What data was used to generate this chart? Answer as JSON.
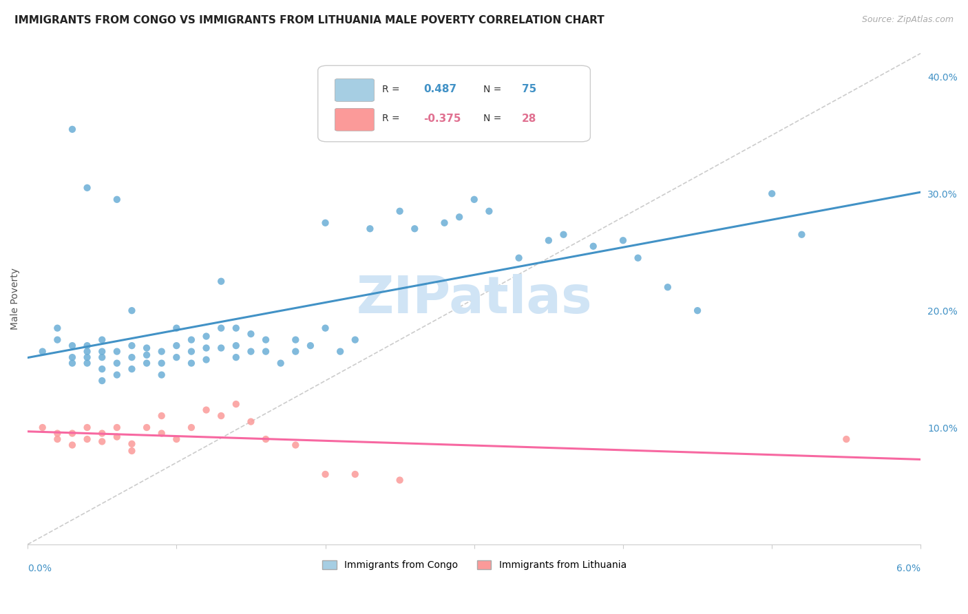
{
  "title": "IMMIGRANTS FROM CONGO VS IMMIGRANTS FROM LITHUANIA MALE POVERTY CORRELATION CHART",
  "source": "Source: ZipAtlas.com",
  "ylabel": "Male Poverty",
  "right_yticks": [
    "40.0%",
    "30.0%",
    "20.0%",
    "10.0%"
  ],
  "right_ytick_vals": [
    0.4,
    0.3,
    0.2,
    0.1
  ],
  "xlim": [
    0.0,
    0.06
  ],
  "ylim": [
    0.0,
    0.42
  ],
  "congo_R": 0.487,
  "congo_N": 75,
  "lithuania_R": -0.375,
  "lithuania_N": 28,
  "congo_color": "#6baed6",
  "congo_line_color": "#4292c6",
  "lithuania_color": "#fb9a99",
  "lithuania_line_color": "#f768a1",
  "legend_box_color_congo": "#a6cee3",
  "legend_box_color_lithuania": "#fb9a99",
  "watermark_text": "ZIPatlas",
  "watermark_color": "#d0e4f5",
  "background_color": "#ffffff",
  "grid_color": "#dddddd",
  "congo_scatter_x": [
    0.001,
    0.002,
    0.002,
    0.003,
    0.003,
    0.003,
    0.004,
    0.004,
    0.004,
    0.004,
    0.005,
    0.005,
    0.005,
    0.005,
    0.005,
    0.006,
    0.006,
    0.006,
    0.007,
    0.007,
    0.007,
    0.007,
    0.008,
    0.008,
    0.008,
    0.009,
    0.009,
    0.009,
    0.01,
    0.01,
    0.01,
    0.011,
    0.011,
    0.011,
    0.012,
    0.012,
    0.012,
    0.013,
    0.013,
    0.014,
    0.014,
    0.014,
    0.015,
    0.015,
    0.016,
    0.016,
    0.017,
    0.018,
    0.018,
    0.019,
    0.02,
    0.02,
    0.021,
    0.022,
    0.023,
    0.025,
    0.026,
    0.028,
    0.029,
    0.03,
    0.031,
    0.033,
    0.035,
    0.036,
    0.038,
    0.04,
    0.041,
    0.043,
    0.045,
    0.05,
    0.003,
    0.004,
    0.006,
    0.013,
    0.052
  ],
  "congo_scatter_y": [
    0.165,
    0.175,
    0.185,
    0.155,
    0.16,
    0.17,
    0.155,
    0.16,
    0.165,
    0.17,
    0.14,
    0.15,
    0.16,
    0.165,
    0.175,
    0.145,
    0.155,
    0.165,
    0.15,
    0.16,
    0.17,
    0.2,
    0.155,
    0.162,
    0.168,
    0.145,
    0.155,
    0.165,
    0.16,
    0.17,
    0.185,
    0.155,
    0.165,
    0.175,
    0.158,
    0.168,
    0.178,
    0.168,
    0.185,
    0.16,
    0.17,
    0.185,
    0.165,
    0.18,
    0.165,
    0.175,
    0.155,
    0.165,
    0.175,
    0.17,
    0.185,
    0.275,
    0.165,
    0.175,
    0.27,
    0.285,
    0.27,
    0.275,
    0.28,
    0.295,
    0.285,
    0.245,
    0.26,
    0.265,
    0.255,
    0.26,
    0.245,
    0.22,
    0.2,
    0.3,
    0.355,
    0.305,
    0.295,
    0.225,
    0.265
  ],
  "lithuania_scatter_x": [
    0.001,
    0.002,
    0.002,
    0.003,
    0.003,
    0.004,
    0.004,
    0.005,
    0.005,
    0.006,
    0.006,
    0.007,
    0.007,
    0.008,
    0.009,
    0.009,
    0.01,
    0.011,
    0.012,
    0.013,
    0.014,
    0.015,
    0.016,
    0.018,
    0.02,
    0.022,
    0.025,
    0.055
  ],
  "lithuania_scatter_y": [
    0.1,
    0.09,
    0.095,
    0.095,
    0.085,
    0.1,
    0.09,
    0.095,
    0.088,
    0.092,
    0.1,
    0.08,
    0.086,
    0.1,
    0.11,
    0.095,
    0.09,
    0.1,
    0.115,
    0.11,
    0.12,
    0.105,
    0.09,
    0.085,
    0.06,
    0.06,
    0.055,
    0.09
  ]
}
